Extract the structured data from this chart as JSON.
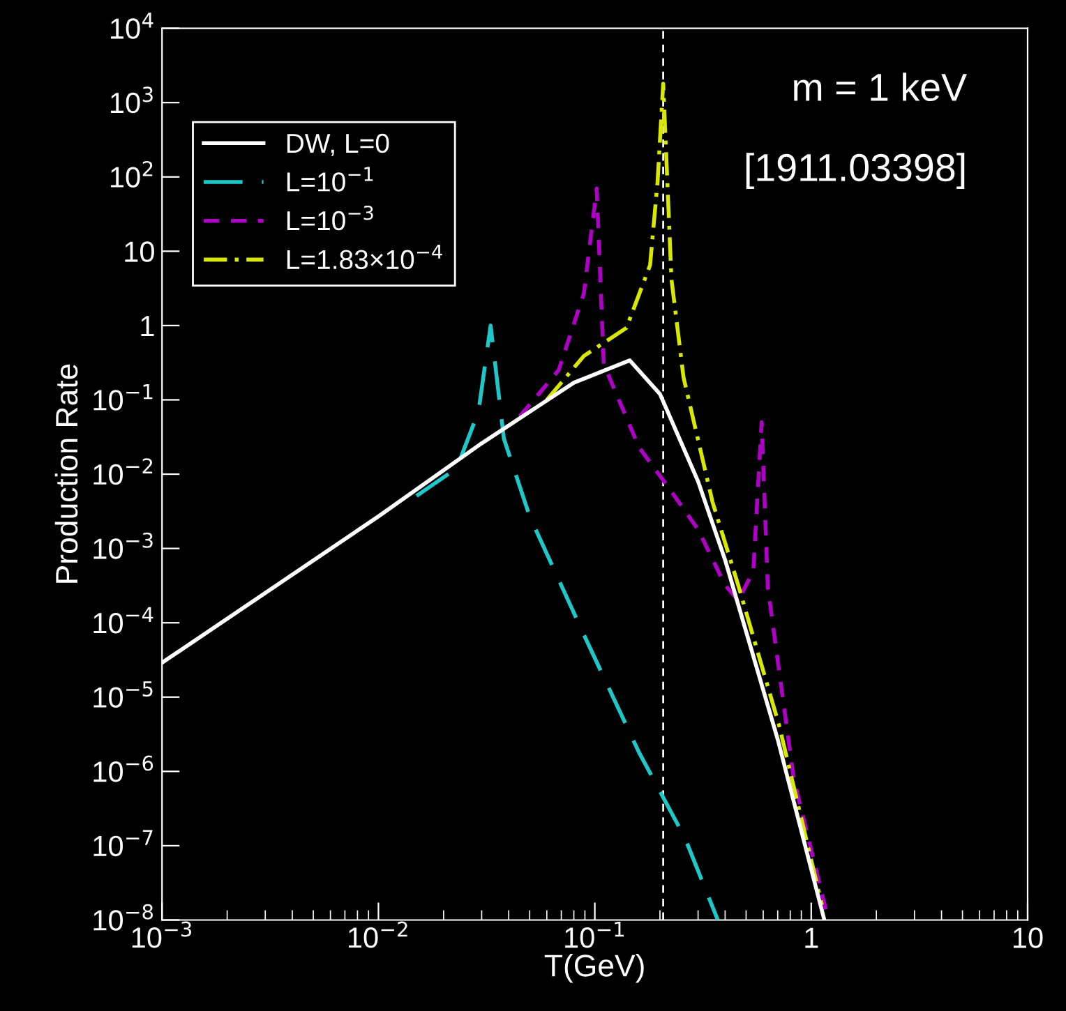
{
  "chart_data": {
    "type": "line",
    "xlabel": "T(GeV)",
    "ylabel": "Production Rate",
    "log": "xy",
    "grid": false,
    "legend": "top left",
    "marker": "none",
    "xlim": [
      0.001,
      10
    ],
    "ylim": [
      1e-08,
      10000
    ],
    "xticks": [
      {
        "value": 0.001,
        "label": "10$^{−3}$"
      },
      {
        "value": 0.01,
        "label": "10$^{−2}$"
      },
      {
        "value": 0.1,
        "label": "10$^{−1}$"
      },
      1,
      10
    ],
    "yticks": [
      {
        "value": 1e-08,
        "label": "10$^{−8}$"
      },
      {
        "value": 1e-07,
        "label": "10$^{−7}$"
      },
      {
        "value": 1e-06,
        "label": "10$^{−6}$"
      },
      {
        "value": 1e-05,
        "label": "10$^{−5}$"
      },
      {
        "value": 0.0001,
        "label": "10$^{−4}$"
      },
      {
        "value": 0.001,
        "label": "10$^{−3}$"
      },
      {
        "value": 0.01,
        "label": "10$^{−2}$"
      },
      {
        "value": 0.1,
        "label": "10$^{−1}$"
      },
      1,
      10,
      {
        "value": 100,
        "label": "10$^{2}$"
      },
      {
        "value": 1000,
        "label": "10$^{3}$"
      },
      {
        "value": 10000,
        "label": "10$^{4}$"
      }
    ],
    "series": [
      {
        "name": "DW, L=0",
        "color": "#ffffff",
        "line_style": "solid",
        "x": [
          0.001,
          0.01,
          0.03,
          0.08,
          0.145,
          0.2,
          0.3,
          0.4,
          0.7,
          1.15
        ],
        "values": [
          2.9e-05,
          0.0027,
          0.026,
          0.17,
          0.34,
          0.12,
          0.008,
          0.0007,
          2.7e-06,
          1e-08
        ]
      },
      {
        "name": "L=10$^{−1}$",
        "color": "#1fc8c8",
        "line_style": "longdash",
        "x": [
          0.015,
          0.023,
          0.029,
          0.033,
          0.038,
          0.05,
          0.089,
          0.16,
          0.26,
          0.37
        ],
        "values": [
          0.0051,
          0.012,
          0.07,
          1.0,
          0.03,
          0.0027,
          6.9e-05,
          1.8e-06,
          1.3e-07,
          1e-08
        ]
      },
      {
        "name": "L=10$^{−3}$",
        "color": "#b000c8",
        "line_style": "dashed",
        "x": [
          0.045,
          0.068,
          0.089,
          0.102,
          0.11,
          0.16,
          0.22,
          0.3,
          0.4,
          0.46,
          0.54,
          0.59,
          0.63,
          0.83,
          1.2
        ],
        "values": [
          0.06,
          0.25,
          2.7,
          70,
          0.3,
          0.023,
          0.0065,
          0.0018,
          0.00032,
          0.0002,
          0.0005,
          0.05,
          0.0003,
          8e-07,
          1e-08
        ]
      },
      {
        "name": "L=1.83×10$^{−4}$",
        "color": "#d8e800",
        "line_style": "dashdot",
        "x": [
          0.06,
          0.089,
          0.14,
          0.18,
          0.195,
          0.207,
          0.226,
          0.257,
          0.35,
          0.46,
          0.71,
          1.12
        ],
        "values": [
          0.1,
          0.39,
          0.93,
          6.5,
          87,
          1800,
          4.2,
          0.2,
          0.0042,
          0.00032,
          4.2e-06,
          1.6e-08
        ]
      }
    ],
    "ref_lines": [
      {
        "axis": "x",
        "value": 0.207,
        "color": "#ffffff",
        "line_style": "dashed"
      }
    ],
    "annotations": [
      "m = 1 keV",
      "[1911.03398]"
    ]
  }
}
